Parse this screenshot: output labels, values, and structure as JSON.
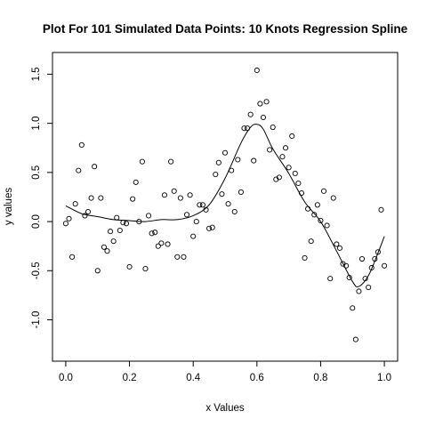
{
  "chart_data": {
    "type": "scatter",
    "title": "Plot For 101 Simulated Data Points: 10 Knots Regression Spline",
    "xlabel": "x Values",
    "ylabel": "y values",
    "xlim": [
      0,
      1
    ],
    "ylim": [
      -1.3,
      1.6
    ],
    "grid": false,
    "x_ticks": [
      0.0,
      0.2,
      0.4,
      0.6,
      0.8,
      1.0
    ],
    "x_tick_labels": [
      "0.0",
      "0.2",
      "0.4",
      "0.6",
      "0.8",
      "1.0"
    ],
    "y_ticks": [
      -1.0,
      -0.5,
      0.0,
      0.5,
      1.0,
      1.5
    ],
    "y_tick_labels": [
      "-1.0",
      "-0.5",
      "0.0",
      "0.5",
      "1.0",
      "1.5"
    ],
    "series": [
      {
        "type": "scatter",
        "marker": "open-circle",
        "points": [
          [
            0.0,
            -0.02
          ],
          [
            0.01,
            0.03
          ],
          [
            0.02,
            -0.36
          ],
          [
            0.03,
            0.18
          ],
          [
            0.04,
            0.52
          ],
          [
            0.05,
            0.78
          ],
          [
            0.06,
            0.06
          ],
          [
            0.07,
            0.1
          ],
          [
            0.08,
            0.24
          ],
          [
            0.09,
            0.56
          ],
          [
            0.1,
            -0.5
          ],
          [
            0.11,
            0.24
          ],
          [
            0.12,
            -0.26
          ],
          [
            0.13,
            -0.3
          ],
          [
            0.14,
            -0.1
          ],
          [
            0.15,
            -0.2
          ],
          [
            0.16,
            0.04
          ],
          [
            0.17,
            -0.09
          ],
          [
            0.18,
            -0.01
          ],
          [
            0.19,
            -0.02
          ],
          [
            0.2,
            -0.46
          ],
          [
            0.21,
            0.23
          ],
          [
            0.22,
            0.4
          ],
          [
            0.23,
            0.0
          ],
          [
            0.24,
            0.61
          ],
          [
            0.25,
            -0.48
          ],
          [
            0.26,
            0.06
          ],
          [
            0.27,
            -0.12
          ],
          [
            0.28,
            -0.11
          ],
          [
            0.29,
            -0.25
          ],
          [
            0.3,
            -0.22
          ],
          [
            0.31,
            0.27
          ],
          [
            0.32,
            -0.23
          ],
          [
            0.33,
            0.61
          ],
          [
            0.34,
            0.31
          ],
          [
            0.35,
            -0.36
          ],
          [
            0.36,
            0.24
          ],
          [
            0.37,
            -0.36
          ],
          [
            0.38,
            0.07
          ],
          [
            0.39,
            0.27
          ],
          [
            0.4,
            -0.15
          ],
          [
            0.41,
            0.0
          ],
          [
            0.42,
            0.17
          ],
          [
            0.43,
            0.17
          ],
          [
            0.44,
            0.12
          ],
          [
            0.45,
            -0.07
          ],
          [
            0.46,
            -0.06
          ],
          [
            0.47,
            0.48
          ],
          [
            0.48,
            0.6
          ],
          [
            0.49,
            0.28
          ],
          [
            0.5,
            0.7
          ],
          [
            0.51,
            0.18
          ],
          [
            0.52,
            0.52
          ],
          [
            0.53,
            0.1
          ],
          [
            0.54,
            0.63
          ],
          [
            0.55,
            0.3
          ],
          [
            0.56,
            0.95
          ],
          [
            0.57,
            0.95
          ],
          [
            0.58,
            1.09
          ],
          [
            0.59,
            0.62
          ],
          [
            0.6,
            1.54
          ],
          [
            0.61,
            1.2
          ],
          [
            0.62,
            1.06
          ],
          [
            0.63,
            1.22
          ],
          [
            0.64,
            0.73
          ],
          [
            0.65,
            0.96
          ],
          [
            0.66,
            0.43
          ],
          [
            0.67,
            0.45
          ],
          [
            0.68,
            0.66
          ],
          [
            0.69,
            0.75
          ],
          [
            0.7,
            0.55
          ],
          [
            0.71,
            0.87
          ],
          [
            0.72,
            0.49
          ],
          [
            0.73,
            0.39
          ],
          [
            0.74,
            0.29
          ],
          [
            0.75,
            -0.37
          ],
          [
            0.76,
            0.13
          ],
          [
            0.77,
            -0.2
          ],
          [
            0.78,
            0.07
          ],
          [
            0.79,
            0.17
          ],
          [
            0.8,
            0.01
          ],
          [
            0.81,
            0.31
          ],
          [
            0.82,
            -0.04
          ],
          [
            0.83,
            -0.58
          ],
          [
            0.84,
            0.24
          ],
          [
            0.85,
            -0.23
          ],
          [
            0.86,
            -0.27
          ],
          [
            0.87,
            -0.43
          ],
          [
            0.88,
            -0.45
          ],
          [
            0.89,
            -0.57
          ],
          [
            0.9,
            -0.88
          ],
          [
            0.91,
            -1.2
          ],
          [
            0.92,
            -0.71
          ],
          [
            0.93,
            -0.38
          ],
          [
            0.94,
            -0.58
          ],
          [
            0.95,
            -0.67
          ],
          [
            0.96,
            -0.47
          ],
          [
            0.97,
            -0.38
          ],
          [
            0.98,
            -0.31
          ],
          [
            0.99,
            0.12
          ],
          [
            1.0,
            -0.45
          ]
        ]
      },
      {
        "type": "line",
        "points": [
          [
            0.0,
            0.16
          ],
          [
            0.05,
            0.08
          ],
          [
            0.1,
            0.05
          ],
          [
            0.15,
            0.02
          ],
          [
            0.2,
            0.01
          ],
          [
            0.25,
            0.0
          ],
          [
            0.3,
            0.02
          ],
          [
            0.35,
            0.02
          ],
          [
            0.4,
            0.06
          ],
          [
            0.45,
            0.17
          ],
          [
            0.5,
            0.44
          ],
          [
            0.55,
            0.8
          ],
          [
            0.58,
            0.96
          ],
          [
            0.6,
            0.99
          ],
          [
            0.62,
            0.94
          ],
          [
            0.65,
            0.74
          ],
          [
            0.7,
            0.49
          ],
          [
            0.75,
            0.2
          ],
          [
            0.8,
            0.0
          ],
          [
            0.85,
            -0.3
          ],
          [
            0.9,
            -0.61
          ],
          [
            0.92,
            -0.66
          ],
          [
            0.95,
            -0.55
          ],
          [
            0.98,
            -0.32
          ],
          [
            1.0,
            -0.15
          ]
        ]
      }
    ]
  }
}
